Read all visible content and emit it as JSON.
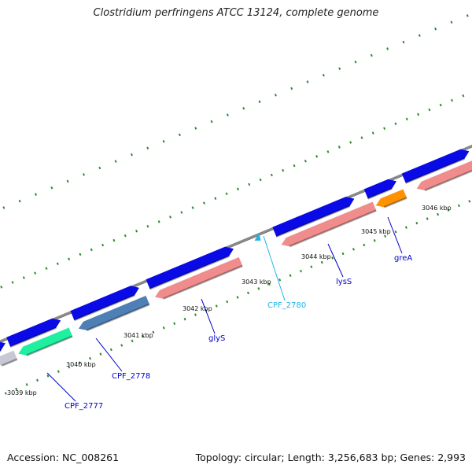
{
  "title": "Clostridium perfringens ATCC 13124, complete genome",
  "footer": {
    "accession": "Accession: NC_008261",
    "summary": "Topology: circular; Length: 3,256,683 bp; Genes: 2,993"
  },
  "colors": {
    "backbone": "#8a8a8a",
    "tick": "#2f8a2f",
    "cds_forward": "#0a0ae6",
    "cds_reverse": "#f08c8c",
    "gene_orange": "#ff9200",
    "gene_green": "#1ff0a0",
    "gene_steel": "#4e7fb5",
    "label_dark": "#0000cc",
    "label_light": "#22b5e6"
  },
  "kbp_labels": [
    {
      "text": "3039 kbp"
    },
    {
      "text": "3040 kbp"
    },
    {
      "text": "3041 kbp"
    },
    {
      "text": "3042 kbp"
    },
    {
      "text": "3043 kbp"
    },
    {
      "text": "3044 kbp"
    },
    {
      "text": "3045 kbp"
    },
    {
      "text": "3046 kbp"
    }
  ],
  "gene_labels": [
    {
      "text": "CPF_2777",
      "color": "#0000cc"
    },
    {
      "text": "CPF_2778",
      "color": "#0000cc"
    },
    {
      "text": "glyS",
      "color": "#0000cc"
    },
    {
      "text": "CPF_2780",
      "color": "#22b5e6"
    },
    {
      "text": "lysS",
      "color": "#0000cc"
    },
    {
      "text": "greA",
      "color": "#0000cc"
    }
  ]
}
